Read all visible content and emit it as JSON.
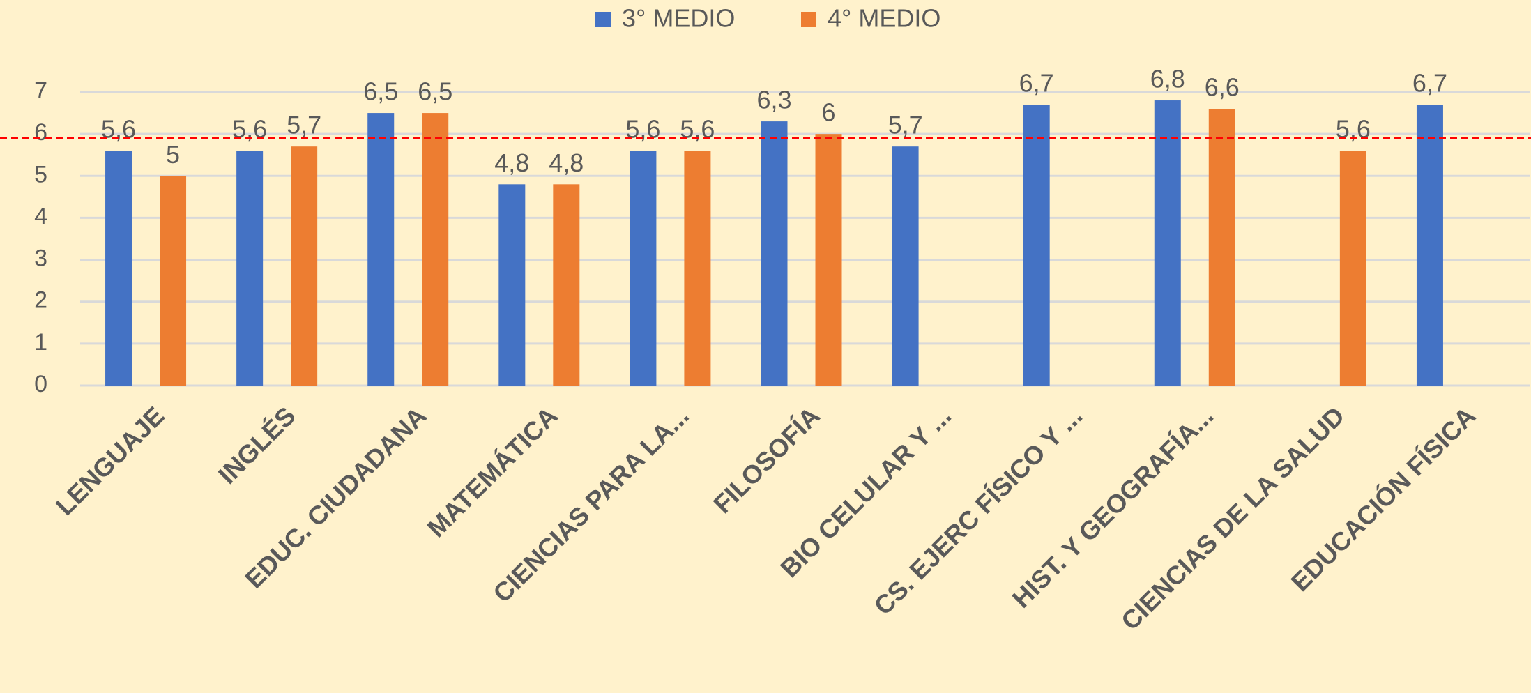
{
  "chart_data": {
    "type": "bar",
    "categories": [
      "LENGUAJE",
      "INGLÉS",
      "EDUC. CIUDADANA",
      "MATEMÁTICA",
      "CIENCIAS PARA LA...",
      "FILOSOFÍA",
      "BIO CELULAR Y ...",
      "CS. EJERC FÍSICO Y ...",
      "HIST. Y GEOGRAFÍA...",
      "CIENCIAS DE LA SALUD",
      "EDUCACIÓN FÍSICA"
    ],
    "series": [
      {
        "name": "3° MEDIO",
        "color": "#4472c4",
        "values": [
          5.6,
          5.6,
          6.5,
          4.8,
          5.6,
          6.3,
          5.7,
          6.7,
          6.8,
          null,
          6.7
        ],
        "value_labels": [
          "5,6",
          "5,6",
          "6,5",
          "4,8",
          "5,6",
          "6,3",
          "5,7",
          "6,7",
          "6,8",
          null,
          "6,7"
        ]
      },
      {
        "name": "4° MEDIO",
        "color": "#ed7d31",
        "values": [
          5,
          5.7,
          6.5,
          4.8,
          5.6,
          6,
          null,
          null,
          6.6,
          5.6,
          null
        ],
        "value_labels": [
          "5",
          "5,7",
          "6,5",
          "4,8",
          "5,6",
          "6",
          null,
          null,
          "6,6",
          "5,6",
          null
        ]
      }
    ],
    "ylim": [
      0,
      7
    ],
    "yticks": [
      0,
      1,
      2,
      3,
      4,
      5,
      6,
      7
    ],
    "grid": true,
    "legend": "top",
    "reference_line": {
      "value": 5.9,
      "color": "#ff0000"
    }
  }
}
